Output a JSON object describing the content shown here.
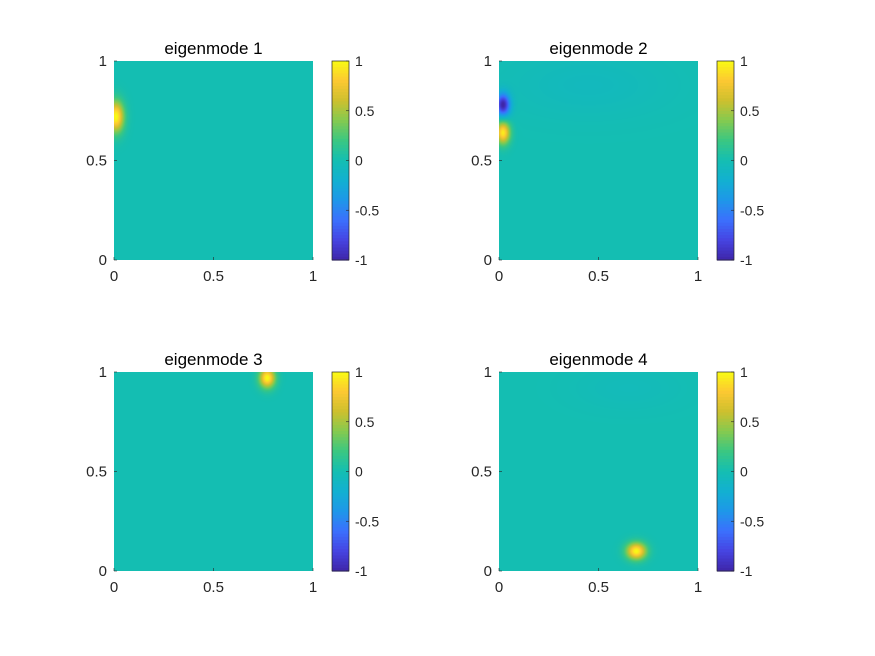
{
  "chart_data": [
    {
      "type": "heatmap",
      "title": "eigenmode 1",
      "xlim": [
        0,
        1
      ],
      "ylim": [
        0,
        1
      ],
      "xticks": [
        "0",
        "0.5",
        "1"
      ],
      "yticks": [
        "0",
        "0.5",
        "1"
      ],
      "clim": [
        -1,
        1
      ],
      "colorbar_ticks": [
        "-1",
        "-0.5",
        "0",
        "0.5",
        "1"
      ],
      "colormap": "parula",
      "background_value": 0,
      "blobs": [
        {
          "x": 0.01,
          "y": 0.72,
          "value": 1.0,
          "sigma_x": 0.028,
          "sigma_y": 0.055
        }
      ]
    },
    {
      "type": "heatmap",
      "title": "eigenmode 2",
      "xlim": [
        0,
        1
      ],
      "ylim": [
        0,
        1
      ],
      "xticks": [
        "0",
        "0.5",
        "1"
      ],
      "yticks": [
        "0",
        "0.5",
        "1"
      ],
      "clim": [
        -1,
        1
      ],
      "colorbar_ticks": [
        "-1",
        "-0.5",
        "0",
        "0.5",
        "1"
      ],
      "colormap": "parula",
      "background_value": 0,
      "blobs": [
        {
          "x": 0.02,
          "y": 0.78,
          "value": -1.0,
          "sigma_x": 0.025,
          "sigma_y": 0.04
        },
        {
          "x": 0.02,
          "y": 0.64,
          "value": 0.95,
          "sigma_x": 0.025,
          "sigma_y": 0.04
        },
        {
          "x": 0.45,
          "y": 0.88,
          "value": -0.07,
          "sigma_x": 0.3,
          "sigma_y": 0.12
        }
      ]
    },
    {
      "type": "heatmap",
      "title": "eigenmode 3",
      "xlim": [
        0,
        1
      ],
      "ylim": [
        0,
        1
      ],
      "xticks": [
        "0",
        "0.5",
        "1"
      ],
      "yticks": [
        "0",
        "0.5",
        "1"
      ],
      "clim": [
        -1,
        1
      ],
      "colorbar_ticks": [
        "-1",
        "-0.5",
        "0",
        "0.5",
        "1"
      ],
      "colormap": "parula",
      "background_value": 0,
      "blobs": [
        {
          "x": 0.77,
          "y": 0.97,
          "value": 1.0,
          "sigma_x": 0.028,
          "sigma_y": 0.035
        }
      ]
    },
    {
      "type": "heatmap",
      "title": "eigenmode 4",
      "xlim": [
        0,
        1
      ],
      "ylim": [
        0,
        1
      ],
      "xticks": [
        "0",
        "0.5",
        "1"
      ],
      "yticks": [
        "0",
        "0.5",
        "1"
      ],
      "clim": [
        -1,
        1
      ],
      "colorbar_ticks": [
        "-1",
        "-0.5",
        "0",
        "0.5",
        "1"
      ],
      "colormap": "parula",
      "background_value": 0,
      "blobs": [
        {
          "x": 0.69,
          "y": 0.1,
          "value": 1.0,
          "sigma_x": 0.035,
          "sigma_y": 0.03
        },
        {
          "x": 0.65,
          "y": 0.92,
          "value": -0.05,
          "sigma_x": 0.2,
          "sigma_y": 0.08
        }
      ]
    }
  ]
}
